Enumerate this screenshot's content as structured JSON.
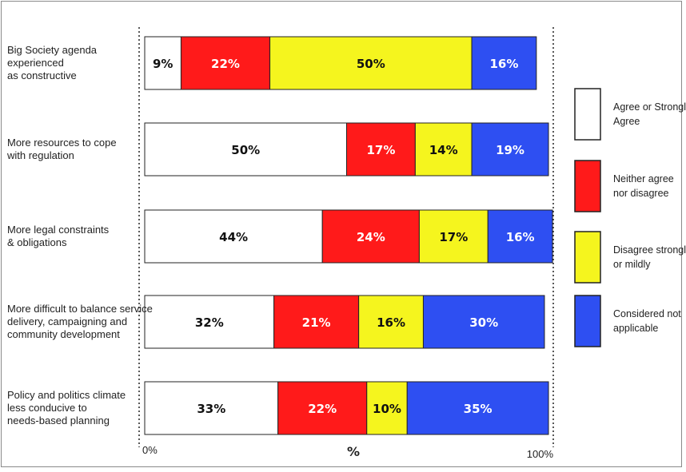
{
  "chart_data": {
    "type": "bar",
    "orientation": "horizontal",
    "stacked": true,
    "categories": [
      [
        "Big Society agenda",
        "experienced",
        "as constructive"
      ],
      [
        "More resources to cope",
        "with regulation"
      ],
      [
        "More legal constraints",
        "& obligations"
      ],
      [
        "More difficult to balance service",
        "delivery, campaigning and",
        "community development"
      ],
      [
        "Policy and politics climate",
        "less conducive to",
        "needs-based planning"
      ]
    ],
    "series": [
      {
        "name_lines": [
          "Agree or Strongly",
          "Agree"
        ],
        "color": "#ffffff",
        "text_color": "#111111",
        "values": [
          9,
          50,
          44,
          32,
          33
        ]
      },
      {
        "name_lines": [
          "Neither agree",
          "nor disagree"
        ],
        "color": "#ff1a1a",
        "text_color": "#ffffff",
        "values": [
          22,
          17,
          24,
          21,
          22
        ]
      },
      {
        "name_lines": [
          "Disagree strongly",
          "or mildly"
        ],
        "color": "#f5f51e",
        "text_color": "#111111",
        "values": [
          50,
          14,
          17,
          16,
          10
        ]
      },
      {
        "name_lines": [
          "Considered not",
          "applicable"
        ],
        "color": "#2e4ff2",
        "text_color": "#ffffff",
        "values": [
          16,
          19,
          16,
          30,
          35
        ]
      }
    ],
    "value_suffix": "%",
    "xlim": [
      0,
      100
    ],
    "x_tick_labels": [
      "0%",
      "100%"
    ],
    "xlabel": "%",
    "legend_position": "right"
  }
}
